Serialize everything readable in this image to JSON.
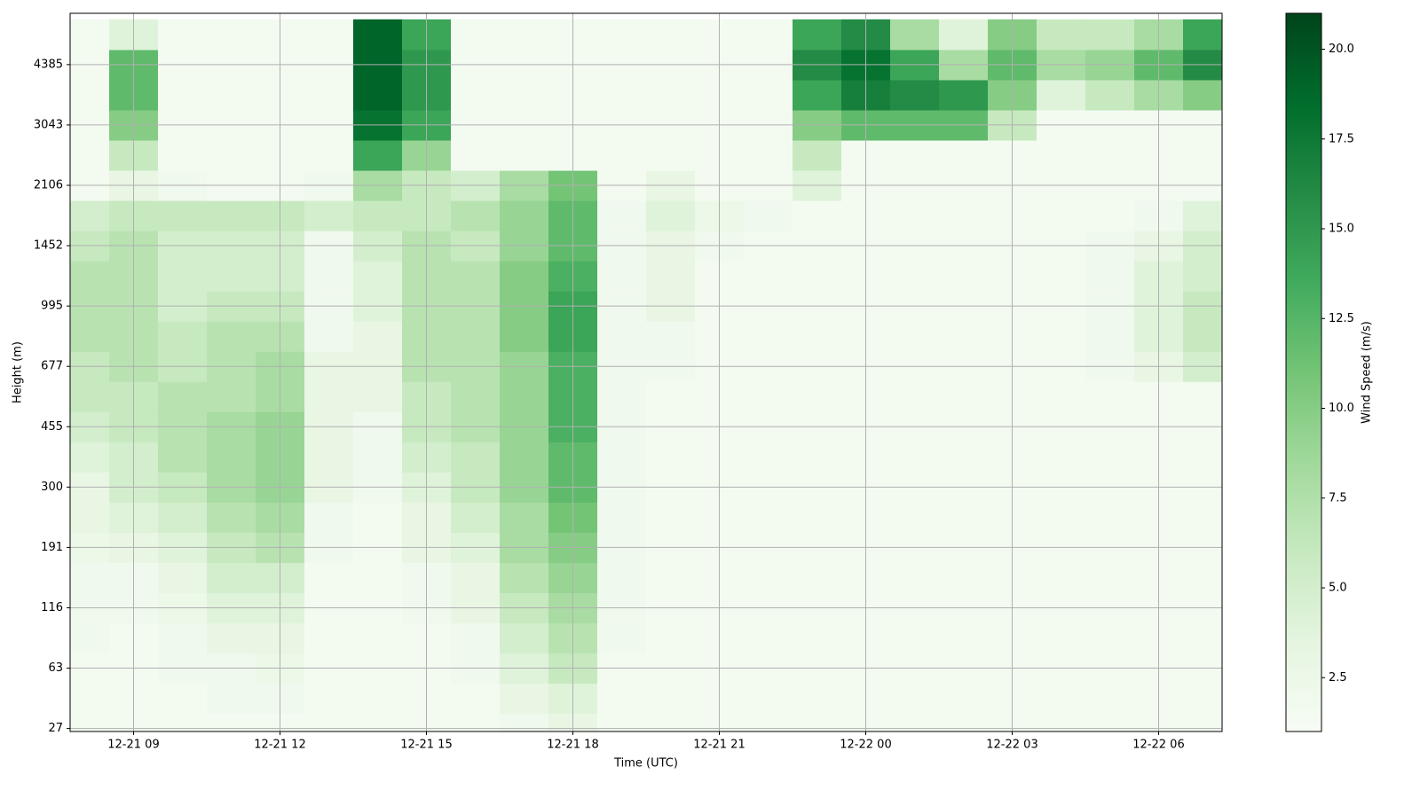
{
  "chart_data": {
    "type": "heatmap",
    "xlabel": "Time (UTC)",
    "ylabel": "Height (m)",
    "colorbar_label": "Wind Speed (m/s)",
    "xlim": [
      7.7,
      31.3
    ],
    "xticks": [
      {
        "value": 9,
        "label": "12-21 09"
      },
      {
        "value": 12,
        "label": "12-21 12"
      },
      {
        "value": 15,
        "label": "12-21 15"
      },
      {
        "value": 18,
        "label": "12-21 18"
      },
      {
        "value": 21,
        "label": "12-21 21"
      },
      {
        "value": 24,
        "label": "12-22 00"
      },
      {
        "value": 27,
        "label": "12-22 03"
      },
      {
        "value": 30,
        "label": "12-22 06"
      }
    ],
    "ylim": [
      -0.05,
      11.85
    ],
    "yticks": [
      {
        "value": 0,
        "label": "27"
      },
      {
        "value": 1,
        "label": "63"
      },
      {
        "value": 2,
        "label": "116"
      },
      {
        "value": 3,
        "label": "191"
      },
      {
        "value": 4,
        "label": "300"
      },
      {
        "value": 5,
        "label": "455"
      },
      {
        "value": 6,
        "label": "677"
      },
      {
        "value": 7,
        "label": "995"
      },
      {
        "value": 8,
        "label": "1452"
      },
      {
        "value": 9,
        "label": "2106"
      },
      {
        "value": 10,
        "label": "3043"
      },
      {
        "value": 11,
        "label": "4385"
      }
    ],
    "grid": true,
    "clim": [
      1,
      21
    ],
    "cticks": [
      2.5,
      {
        "value": 5,
        "label": "5.0"
      },
      7.5,
      {
        "value": 10,
        "label": "10.0"
      },
      12.5,
      {
        "value": 15,
        "label": "15.0"
      },
      17.5,
      {
        "value": 20,
        "label": "20.0"
      }
    ],
    "colormap": [
      "#f7fcf5",
      "#e5f5e0",
      "#c7e9c0",
      "#a1d99b",
      "#74c476",
      "#41ab5d",
      "#238b45",
      "#006d2c",
      "#00441b"
    ],
    "x": [
      8,
      9,
      10,
      11,
      12,
      13,
      14,
      15,
      16,
      17,
      18,
      19,
      20,
      21,
      22,
      23,
      24,
      25,
      26,
      27,
      28,
      29,
      30,
      31
    ],
    "y": [
      0,
      0.5,
      1,
      1.5,
      2,
      2.5,
      3,
      3.5,
      4,
      4.5,
      5,
      5.5,
      6,
      6.5,
      7,
      7.5,
      8,
      8.5,
      9,
      9.5,
      10,
      10.5,
      11,
      11.5
    ],
    "z": [
      [
        1.5,
        1.5,
        1.5,
        2,
        2,
        2,
        2.5,
        3,
        3,
        4,
        5,
        6,
        6,
        7,
        7,
        7,
        6,
        5,
        1.5,
        1.5,
        1.5,
        1.5,
        1.5,
        1.5
      ],
      [
        1.5,
        1.5,
        1.5,
        1.5,
        2,
        2,
        3,
        4,
        5,
        5,
        6,
        6,
        7,
        7,
        7,
        7,
        7,
        6,
        3,
        6,
        10,
        12,
        12,
        4
      ],
      [
        1.5,
        1.5,
        2,
        2,
        2.5,
        3,
        4,
        5,
        6,
        7,
        7,
        7,
        6,
        6,
        5,
        5,
        5,
        6,
        2,
        1.5,
        1.5,
        1.5,
        1.5,
        1.5
      ],
      [
        1.5,
        2,
        2,
        3,
        4,
        5,
        6,
        7,
        8,
        8,
        8,
        7,
        7,
        7,
        6,
        5,
        5,
        6,
        1.5,
        1.5,
        1.5,
        1.5,
        1.5,
        1.5
      ],
      [
        1.5,
        2,
        2.5,
        3,
        4,
        5,
        7,
        8,
        9,
        9,
        9,
        8,
        8,
        7,
        6,
        5,
        5,
        6,
        1.5,
        1.5,
        1.5,
        1.5,
        1.5,
        1.5
      ],
      [
        1.5,
        1.5,
        1.5,
        1.5,
        1.5,
        1.5,
        2,
        2,
        3,
        3,
        3,
        3,
        3,
        2,
        2,
        2,
        2,
        5,
        2,
        1.5,
        1.5,
        1.5,
        1.5,
        1.5
      ],
      [
        1.5,
        1.5,
        1.5,
        1.5,
        1.5,
        1.5,
        1.5,
        1.5,
        2,
        2,
        2,
        3,
        3,
        3,
        4,
        4,
        5,
        6,
        8,
        14,
        18,
        19,
        19,
        19
      ],
      [
        1.5,
        1.5,
        1.5,
        1.5,
        2,
        2,
        3,
        3,
        4,
        5,
        6,
        6,
        7,
        7,
        7,
        7,
        7,
        6,
        6,
        9,
        14,
        15,
        15,
        14
      ],
      [
        1.5,
        1.5,
        2,
        2,
        3,
        3,
        4,
        5,
        6,
        6,
        7,
        7,
        7,
        7,
        7,
        7,
        6,
        7,
        5,
        1.5,
        1.5,
        1.5,
        1.5,
        1.5
      ],
      [
        2,
        3,
        4,
        5,
        6,
        7,
        8,
        8,
        9,
        9,
        9,
        9,
        9,
        10,
        10,
        10,
        9,
        9,
        8,
        1.5,
        1.5,
        1.5,
        1.5,
        1.5
      ],
      [
        3,
        4,
        6,
        7,
        8,
        9,
        10,
        11,
        12,
        12,
        13,
        13,
        13,
        14,
        14,
        13,
        12,
        12,
        11,
        1.5,
        1.5,
        1.5,
        1.5,
        1.5
      ],
      [
        1.5,
        1.5,
        1.5,
        2,
        2,
        2,
        2,
        2,
        2,
        2,
        2,
        2,
        2,
        2,
        2,
        2,
        2,
        2,
        1.5,
        1.5,
        1.5,
        1.5,
        1.5,
        1.5
      ],
      [
        1.5,
        1.5,
        1.5,
        1.5,
        1.5,
        1.5,
        1.5,
        1.5,
        1.5,
        1.5,
        1.5,
        1.5,
        2,
        2,
        3,
        3,
        3,
        4,
        3,
        1.5,
        1.5,
        1.5,
        1.5,
        1.5
      ],
      [
        1.5,
        1.5,
        1.5,
        1.5,
        1.5,
        1.5,
        1.5,
        1.5,
        1.5,
        1.5,
        1.5,
        1.5,
        1.5,
        1.5,
        1.5,
        1.5,
        2,
        2.5,
        1.5,
        1.5,
        1.5,
        1.5,
        1.5,
        1.5
      ],
      [
        1.5,
        1.5,
        1.5,
        1.5,
        1.5,
        1.5,
        1.5,
        1.5,
        1.5,
        1.5,
        1.5,
        1.5,
        1.5,
        1.5,
        1.5,
        1.5,
        1.5,
        2,
        1.5,
        1.5,
        1.5,
        1.5,
        1.5,
        1.5
      ],
      [
        1.5,
        1.5,
        1.5,
        1.5,
        1.5,
        1.5,
        1.5,
        1.5,
        1.5,
        1.5,
        1.5,
        1.5,
        1.5,
        1.5,
        1.5,
        1.5,
        1.5,
        1.5,
        4,
        6,
        10,
        14,
        16,
        14
      ],
      [
        1.5,
        1.5,
        1.5,
        1.5,
        1.5,
        1.5,
        1.5,
        1.5,
        1.5,
        1.5,
        1.5,
        1.5,
        1.5,
        1.5,
        1.5,
        1.5,
        1.5,
        1.5,
        1.5,
        1.5,
        12,
        17,
        18,
        16
      ],
      [
        1.5,
        1.5,
        1.5,
        1.5,
        1.5,
        1.5,
        1.5,
        1.5,
        1.5,
        1.5,
        1.5,
        1.5,
        1.5,
        1.5,
        1.5,
        1.5,
        1.5,
        1.5,
        1.5,
        1.5,
        12,
        16,
        14,
        8
      ],
      [
        1.5,
        1.5,
        1.5,
        1.5,
        1.5,
        1.5,
        1.5,
        1.5,
        1.5,
        1.5,
        1.5,
        1.5,
        1.5,
        1.5,
        1.5,
        1.5,
        1.5,
        1.5,
        1.5,
        1.5,
        12,
        15,
        8,
        4
      ],
      [
        1.5,
        1.5,
        1.5,
        1.5,
        1.5,
        1.5,
        1.5,
        1.5,
        1.5,
        1.5,
        1.5,
        1.5,
        1.5,
        1.5,
        1.5,
        1.5,
        1.5,
        1.5,
        1.5,
        1.5,
        6,
        10,
        12,
        10
      ],
      [
        1.5,
        1.5,
        1.5,
        1.5,
        1.5,
        1.5,
        1.5,
        1.5,
        1.5,
        1.5,
        1.5,
        1.5,
        1.5,
        1.5,
        1.5,
        1.5,
        1.5,
        1.5,
        1.5,
        1.5,
        1.5,
        4,
        8,
        6
      ],
      [
        1.5,
        1.5,
        1.5,
        1.5,
        1.5,
        1.5,
        1.5,
        1.5,
        1.5,
        1.5,
        1.5,
        1.5,
        2,
        2,
        2,
        2,
        2,
        1.5,
        1.5,
        1.5,
        1.5,
        6,
        9,
        6
      ],
      [
        1.5,
        1.5,
        1.5,
        1.5,
        1.5,
        1.5,
        1.5,
        1.5,
        1.5,
        1.5,
        1.5,
        1.5,
        3,
        4,
        4,
        4,
        3,
        2,
        1.5,
        1.5,
        1.5,
        8,
        12,
        8
      ],
      [
        1.5,
        1.5,
        1.5,
        1.5,
        1.5,
        1.5,
        1.5,
        1.5,
        1.5,
        1.5,
        1.5,
        1.5,
        5,
        6,
        6,
        5,
        5,
        4,
        1.5,
        1.5,
        1.5,
        10,
        16,
        14
      ]
    ]
  }
}
